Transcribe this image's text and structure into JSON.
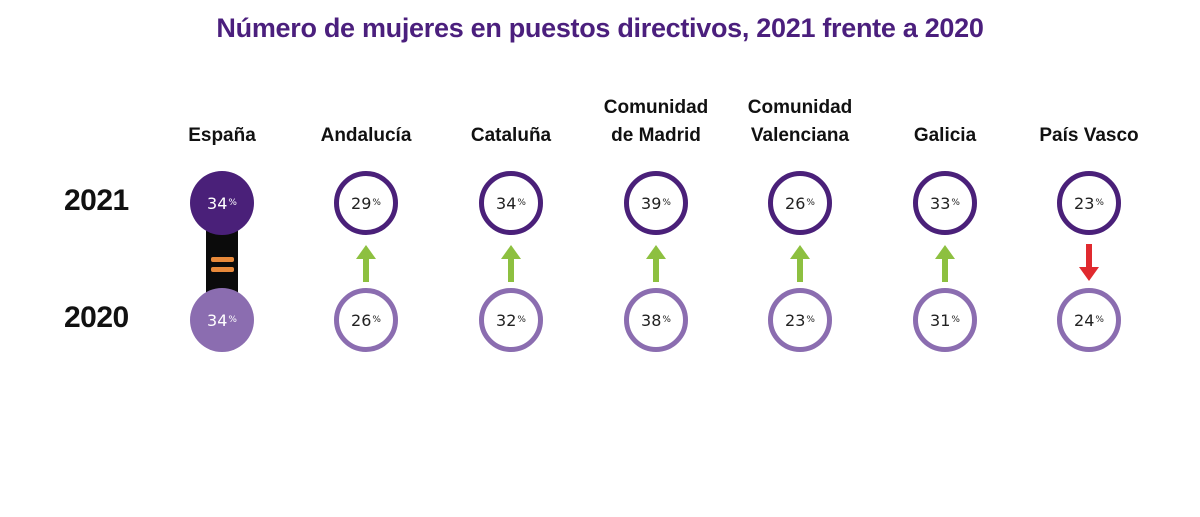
{
  "chart_data": {
    "type": "table",
    "title": "Número de mujeres en puestos directivos, 2021 frente a 2020",
    "years": [
      "2021",
      "2020"
    ],
    "unit_symbol": "%",
    "columns": [
      {
        "label_lines": [
          "España"
        ],
        "v2021": 34,
        "v2020": 34,
        "change": "equal"
      },
      {
        "label_lines": [
          "Andalucía"
        ],
        "v2021": 29,
        "v2020": 26,
        "change": "up"
      },
      {
        "label_lines": [
          "Cataluña"
        ],
        "v2021": 34,
        "v2020": 32,
        "change": "up"
      },
      {
        "label_lines": [
          "Comunidad",
          "de Madrid"
        ],
        "v2021": 39,
        "v2020": 38,
        "change": "up"
      },
      {
        "label_lines": [
          "Comunidad",
          "Valenciana"
        ],
        "v2021": 26,
        "v2020": 23,
        "change": "up"
      },
      {
        "label_lines": [
          "Galicia"
        ],
        "v2021": 33,
        "v2020": 31,
        "change": "up"
      },
      {
        "label_lines": [
          "País Vasco"
        ],
        "v2021": 23,
        "v2020": 24,
        "change": "down"
      }
    ]
  },
  "colors": {
    "title": "#4b1f7d",
    "ring_2021": "#4a2079",
    "ring_2020": "#8b6db0",
    "arrow_up": "#8dc040",
    "arrow_down": "#e02a2f",
    "equal_sign": "#e8893a",
    "connector": "#0b0b0b"
  },
  "icons": {
    "up": "arrow-up-icon",
    "down": "arrow-down-icon",
    "equal": "equals-icon"
  }
}
